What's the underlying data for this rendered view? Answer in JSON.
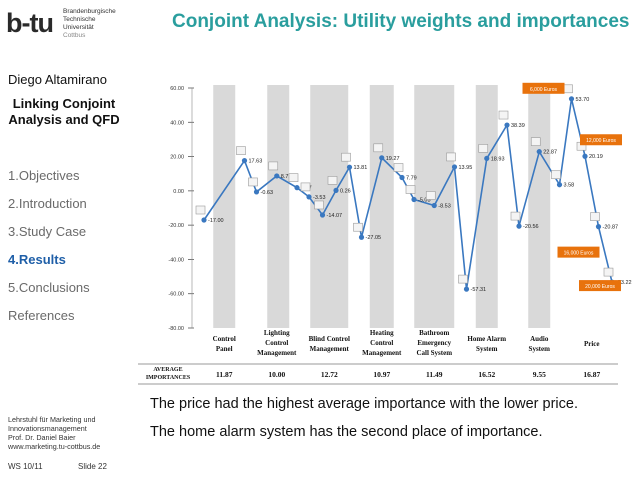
{
  "slide": {
    "title": "Conjoint Analysis: Utility weights and importances",
    "logo": {
      "mark": "b-tu",
      "line1": "Brandenburgische",
      "line2": "Technische Universität",
      "line3": "Cottbus"
    },
    "author": "Diego Altamirano",
    "topic": "Linking Conjoint Analysis and QFD",
    "nav": [
      {
        "label": "1.Objectives",
        "active": false
      },
      {
        "label": "2.Introduction",
        "active": false
      },
      {
        "label": "3.Study Case",
        "active": false
      },
      {
        "label": "4.Results",
        "active": true
      },
      {
        "label": "5.Conclusions",
        "active": false
      },
      {
        "label": "References",
        "active": false
      }
    ],
    "footer": {
      "line1": "Lehrstuhl für Marketing und",
      "line2": "Innovationsmanagement",
      "line3": "Prof. Dr. Daniel Baier",
      "line4": "www.marketing.tu-cottbus.de",
      "semester": "WS 10/11",
      "slide_no": "Slide 22"
    },
    "caption": {
      "p1": "The price had the highest average importance with the lower price.",
      "p2": "The home alarm system has the second place of importance."
    }
  },
  "chart_data": {
    "type": "line",
    "ylim": [
      -80,
      60
    ],
    "yticks": [
      "60.00",
      "40.00",
      "20.00",
      "0.00",
      "-20.00",
      "-40.00",
      "-60.00",
      "-80.00"
    ],
    "tick_values": [
      60,
      40,
      20,
      0,
      -20,
      -40,
      -60,
      -80
    ],
    "grid": false,
    "line_color": "#3a78c0",
    "band_color": "#d9d9d9",
    "attributes": [
      {
        "name": [
          "Control",
          "Panel"
        ],
        "importance": "11.87",
        "points": [
          {
            "y": -17.0,
            "label": "-17.00"
          },
          {
            "y": 17.63,
            "label": "17.63"
          }
        ]
      },
      {
        "name": [
          "Lighting",
          "Control",
          "Management"
        ],
        "importance": "10.00",
        "points": [
          {
            "y": -0.63,
            "label": "-0.63"
          },
          {
            "y": 8.71,
            "label": "8.71"
          },
          {
            "y": 1.87,
            "label": "1.87"
          }
        ]
      },
      {
        "name": [
          "Blind Control",
          "Management"
        ],
        "importance": "12.72",
        "points": [
          {
            "y": -3.53,
            "label": "-3.53"
          },
          {
            "y": -14.07,
            "label": "-14.07"
          },
          {
            "y": 0.26,
            "label": "0.26"
          },
          {
            "y": 13.81,
            "label": "13.81"
          }
        ]
      },
      {
        "name": [
          "Heating",
          "Control",
          "Management"
        ],
        "importance": "10.97",
        "points": [
          {
            "y": -27.05,
            "label": "-27.05"
          },
          {
            "y": 19.27,
            "label": "19.27"
          },
          {
            "y": 7.79,
            "label": "7.79"
          }
        ]
      },
      {
        "name": [
          "Bathroom",
          "Emergency",
          "Call System"
        ],
        "importance": "11.49",
        "points": [
          {
            "y": -5.03,
            "label": "-5.03"
          },
          {
            "y": -8.53,
            "label": "-8.53"
          },
          {
            "y": 13.95,
            "label": "13.95"
          }
        ]
      },
      {
        "name": [
          "Home Alarm",
          "System"
        ],
        "importance": "16.52",
        "points": [
          {
            "y": -57.31,
            "label": "-57.31"
          },
          {
            "y": 18.93,
            "label": "18.93"
          },
          {
            "y": 38.39,
            "label": "38.39"
          }
        ]
      },
      {
        "name": [
          "Audio",
          "System"
        ],
        "importance": "9.55",
        "points": [
          {
            "y": -20.56,
            "label": "-20.56"
          },
          {
            "y": 22.87,
            "label": "22.87"
          },
          {
            "y": 3.58,
            "label": "3.58"
          }
        ]
      },
      {
        "name": [
          "Price"
        ],
        "importance": "16.87",
        "points": [
          {
            "y": 53.7,
            "label": "53.70"
          },
          {
            "y": 20.19,
            "label": "20.19"
          },
          {
            "y": -20.87,
            "label": "-20.87"
          },
          {
            "y": -53.22,
            "label": "-53.22"
          }
        ]
      }
    ],
    "price_tags": [
      {
        "text": "6,000 Euros",
        "color": "#e8720c"
      },
      {
        "text": "12,000 Euros",
        "color": "#e8720c"
      },
      {
        "text": "16,000 Euros",
        "color": "#e8720c"
      },
      {
        "text": "20,000 Euros",
        "color": "#e8720c"
      }
    ],
    "importance_header": [
      "AVERAGE",
      "IMPORTANCES"
    ]
  }
}
